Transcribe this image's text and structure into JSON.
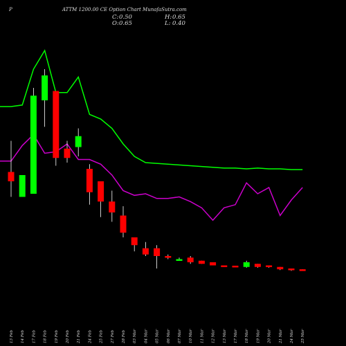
{
  "header": {
    "symbol": "P",
    "title": "ATTM 1200.00  CE Option  Chart MunafaSutra.com",
    "ohlc": {
      "C": "0.50",
      "H": "0.65",
      "O": "0.65",
      "L": "0.40"
    },
    "labels": {
      "C": "C:",
      "H": "H:",
      "O": "O:",
      "L": "L:"
    }
  },
  "colors": {
    "background": "#000000",
    "up": "#00ff00",
    "down": "#ff0000",
    "wick": "#ffffff",
    "ma_fast": "#00ff00",
    "ma_slow": "#cc00cc"
  },
  "chart_data": {
    "type": "candlestick",
    "dates": [
      "13 Feb",
      "14 Feb",
      "17 Feb",
      "18 Feb",
      "19 Feb",
      "20 Feb",
      "21 Feb",
      "24 Feb",
      "25 Feb",
      "27 Feb",
      "28 Feb",
      "03 Mar",
      "04 Mar",
      "05 Mar",
      "06 Mar",
      "07 Mar",
      "10 Mar",
      "11 Mar",
      "12 Mar",
      "13 Mar",
      "17 Mar",
      "18 Mar",
      "19 Mar",
      "20 Mar",
      "21 Mar",
      "24 Mar",
      "25 Mar"
    ],
    "date_labels": [
      "13 Feb",
      "14 Feb",
      "17 Feb",
      "18 Feb",
      "19 Feb",
      "20 Feb",
      "21 Feb",
      "24 Feb",
      "25 Feb",
      "27 Feb",
      "28 Feb",
      "03 Mar",
      "04 Mar",
      "05 Mar",
      "06 Mar",
      "07 Mar",
      "10 Mar",
      "11 Mar",
      "12 Mar",
      "13 Mar",
      "17 Mar",
      "18 Mar",
      "19 Mar",
      "20 Mar",
      "21 Mar",
      "24 Mar",
      "25 Mar"
    ],
    "candles": [
      {
        "o": 94,
        "h": 114,
        "l": 78,
        "c": 88
      },
      {
        "o": 78,
        "h": 92,
        "l": 78,
        "c": 92
      },
      {
        "o": 80,
        "h": 148,
        "l": 80,
        "c": 143
      },
      {
        "o": 140,
        "h": 160,
        "l": 123,
        "c": 156
      },
      {
        "o": 146,
        "h": 146,
        "l": 98,
        "c": 103
      },
      {
        "o": 109,
        "h": 114,
        "l": 100,
        "c": 103
      },
      {
        "o": 110,
        "h": 122,
        "l": 104,
        "c": 117
      },
      {
        "o": 96,
        "h": 99,
        "l": 73,
        "c": 81
      },
      {
        "o": 88,
        "h": 88,
        "l": 65,
        "c": 75
      },
      {
        "o": 75,
        "h": 82,
        "l": 62,
        "c": 68
      },
      {
        "o": 66,
        "h": 72,
        "l": 52,
        "c": 55
      },
      {
        "o": 52,
        "h": 52,
        "l": 43,
        "c": 47
      },
      {
        "o": 45,
        "h": 49,
        "l": 40,
        "c": 41
      },
      {
        "o": 45,
        "h": 47,
        "l": 32,
        "c": 40
      },
      {
        "o": 40,
        "h": 41,
        "l": 38,
        "c": 39
      },
      {
        "o": 38,
        "h": 39,
        "l": 37,
        "c": 38
      },
      {
        "o": 39,
        "h": 40,
        "l": 35,
        "c": 36
      },
      {
        "o": 37,
        "h": 37,
        "l": 35,
        "c": 35
      },
      {
        "o": 36,
        "h": 36,
        "l": 34,
        "c": 34
      },
      {
        "o": 34,
        "h": 34,
        "l": 33,
        "c": 33.4
      },
      {
        "o": 33.8,
        "h": 33.8,
        "l": 33,
        "c": 33.2
      },
      {
        "o": 33,
        "h": 37,
        "l": 32.5,
        "c": 36
      },
      {
        "o": 35,
        "h": 35,
        "l": 32.5,
        "c": 33
      },
      {
        "o": 34,
        "h": 34,
        "l": 32.5,
        "c": 33
      },
      {
        "o": 33,
        "h": 33,
        "l": 31,
        "c": 31.5
      },
      {
        "o": 32,
        "h": 32,
        "l": 30.5,
        "c": 31
      },
      {
        "o": 31.5,
        "h": 31.5,
        "l": 31,
        "c": 31.2
      }
    ],
    "ma_fast": [
      {
        "i": -1,
        "v": 136
      },
      {
        "i": 0,
        "v": 136
      },
      {
        "i": 1,
        "v": 137
      },
      {
        "i": 2,
        "v": 160
      },
      {
        "i": 3,
        "v": 172
      },
      {
        "i": 4,
        "v": 145
      },
      {
        "i": 5,
        "v": 145
      },
      {
        "i": 6,
        "v": 155
      },
      {
        "i": 7,
        "v": 131
      },
      {
        "i": 8,
        "v": 128
      },
      {
        "i": 9,
        "v": 122
      },
      {
        "i": 10,
        "v": 112
      },
      {
        "i": 11,
        "v": 104
      },
      {
        "i": 12,
        "v": 100
      },
      {
        "i": 13,
        "v": 99.5
      },
      {
        "i": 14,
        "v": 99
      },
      {
        "i": 15,
        "v": 98.5
      },
      {
        "i": 16,
        "v": 98
      },
      {
        "i": 17,
        "v": 97.5
      },
      {
        "i": 18,
        "v": 97
      },
      {
        "i": 19,
        "v": 96.5
      },
      {
        "i": 20,
        "v": 96.5
      },
      {
        "i": 21,
        "v": 96
      },
      {
        "i": 22,
        "v": 96.5
      },
      {
        "i": 23,
        "v": 96
      },
      {
        "i": 24,
        "v": 96
      },
      {
        "i": 25,
        "v": 95.5
      },
      {
        "i": 26,
        "v": 95.5
      }
    ],
    "ma_slow": [
      {
        "i": -1,
        "v": 101
      },
      {
        "i": 0,
        "v": 101
      },
      {
        "i": 1,
        "v": 111
      },
      {
        "i": 2,
        "v": 118
      },
      {
        "i": 3,
        "v": 106
      },
      {
        "i": 4,
        "v": 107
      },
      {
        "i": 5,
        "v": 112
      },
      {
        "i": 6,
        "v": 102
      },
      {
        "i": 7,
        "v": 102
      },
      {
        "i": 8,
        "v": 99
      },
      {
        "i": 9,
        "v": 92
      },
      {
        "i": 10,
        "v": 82
      },
      {
        "i": 11,
        "v": 79
      },
      {
        "i": 12,
        "v": 80
      },
      {
        "i": 13,
        "v": 77
      },
      {
        "i": 14,
        "v": 77
      },
      {
        "i": 15,
        "v": 78
      },
      {
        "i": 16,
        "v": 75
      },
      {
        "i": 17,
        "v": 71
      },
      {
        "i": 18,
        "v": 63
      },
      {
        "i": 19,
        "v": 71
      },
      {
        "i": 20,
        "v": 73
      },
      {
        "i": 21,
        "v": 87
      },
      {
        "i": 22,
        "v": 80
      },
      {
        "i": 23,
        "v": 84
      },
      {
        "i": 24,
        "v": 66
      },
      {
        "i": 25,
        "v": 76
      },
      {
        "i": 26,
        "v": 84
      }
    ],
    "xlabel": "",
    "ylabel": "",
    "grid": false,
    "legend": "none"
  }
}
